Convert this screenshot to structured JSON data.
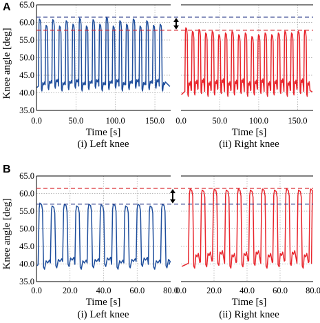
{
  "colors": {
    "left": "#1f4e9c",
    "right": "#e8262d",
    "grid": "#a0a0a0",
    "ref_blue": "#2a3a8a",
    "ref_red": "#d8262c"
  },
  "chart_data": [
    {
      "panel": "A",
      "type": "line",
      "ylabel": "Knee angle [deg]",
      "ylim": [
        35.0,
        65.0
      ],
      "yticks": [
        "35.0",
        "40.0",
        "45.0",
        "50.0",
        "55.0",
        "60.0",
        "65.0"
      ],
      "grid": true,
      "reference_lines": {
        "blue": 61.5,
        "red": 57.8
      },
      "subplots": [
        {
          "caption": "(i) Left knee",
          "xlabel": "Time [s]",
          "xlim": [
            0,
            170
          ],
          "xticks": [
            "0.0",
            "50.0",
            "100.0",
            "150.0"
          ],
          "color": "left",
          "cycles": {
            "start": 2.5,
            "period": 8.5,
            "count": 19,
            "peak": 61.0,
            "base": 41.5,
            "peak_pattern": [
              61.0,
              59.2,
              60.8,
              59.0,
              60.5,
              59.5,
              61.2,
              59.0,
              60.8,
              59.5,
              61.5,
              59.0,
              60.5,
              59.5,
              61.0,
              59.0,
              60.5,
              59.2,
              59.5
            ]
          }
        },
        {
          "caption": "(ii) Right knee",
          "xlabel": "Time [s]",
          "xlim": [
            0,
            170
          ],
          "xticks": [
            "0.0",
            "50.0",
            "100.0",
            "150.0"
          ],
          "color": "right",
          "cycles": {
            "start": 5.0,
            "period": 8.5,
            "count": 19,
            "peak": 58.0,
            "base": 40.0,
            "peak_pattern": [
              58.5,
              57.5,
              58.0,
              57.0,
              57.5,
              56.5,
              57.0,
              57.5,
              56.5,
              57.0,
              56.0,
              56.5,
              57.0,
              56.5,
              57.0,
              57.5,
              57.0,
              57.5,
              57.8
            ]
          }
        }
      ]
    },
    {
      "panel": "B",
      "type": "line",
      "ylabel": "Knee angle [deg]",
      "ylim": [
        35.0,
        65.0
      ],
      "yticks": [
        "35.0",
        "40.0",
        "45.0",
        "50.0",
        "55.0",
        "60.0",
        "65.0"
      ],
      "grid": true,
      "reference_lines": {
        "red": 61.5,
        "blue": 57.0
      },
      "subplots": [
        {
          "caption": "(i) Left knee",
          "xlabel": "Time [s]",
          "xlim": [
            0,
            80
          ],
          "xticks": [
            "0.0",
            "20.0",
            "40.0",
            "60.0",
            "80.0"
          ],
          "color": "left",
          "cycles": {
            "start": 1.0,
            "period": 7.3,
            "count": 11,
            "peak": 57.0,
            "base": 39.5,
            "peak_pattern": [
              57.3,
              56.5,
              57.0,
              56.5,
              57.0,
              56.8,
              57.0,
              56.5,
              57.0,
              56.5,
              57.0
            ]
          }
        },
        {
          "caption": "(ii) Right knee",
          "xlabel": "Time [s]",
          "xlim": [
            0,
            80
          ],
          "xticks": [
            "0.0",
            "20.0",
            "40.0",
            "60.0",
            "80.0"
          ],
          "color": "right",
          "cycles": {
            "start": 4.5,
            "period": 7.3,
            "count": 11,
            "peak": 61.3,
            "base": 39.8,
            "peak_pattern": [
              61.3,
              61.0,
              61.3,
              61.0,
              61.3,
              61.0,
              61.3,
              61.0,
              61.3,
              61.0,
              61.3
            ]
          }
        }
      ]
    }
  ]
}
